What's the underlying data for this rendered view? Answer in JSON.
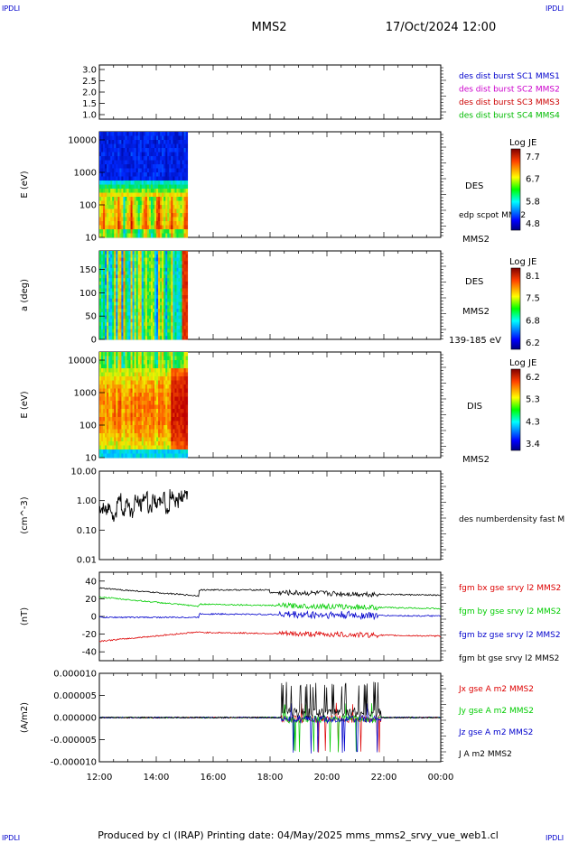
{
  "header": {
    "corner_tl": "IPDLI",
    "corner_tr": "IPDLI",
    "corner_bl": "IPDLI",
    "corner_br": "IPDLI",
    "mission": "MMS2",
    "datetime": "17/Oct/2024 12:00"
  },
  "footer": {
    "text": "Produced by cl (IRAP)   Printing date: 04/May/2025   mms_mms2_srvy_vue_web1.cl"
  },
  "colors": {
    "mms1": "#0000cc",
    "mms2": "#cc00cc",
    "mms3": "#cc0000",
    "mms4": "#00bb00",
    "bx": "#dd0000",
    "by": "#00cc00",
    "bz": "#0000cc",
    "bt": "#000000"
  },
  "time_axis": {
    "ticks": [
      "12:00",
      "14:00",
      "16:00",
      "18:00",
      "20:00",
      "22:00",
      "00:00"
    ],
    "start_hour": 12,
    "end_hour": 24
  },
  "chart_data": [
    {
      "type": "line",
      "panel": "burst",
      "yticks": [
        "3.0",
        "2.5",
        "2.0",
        "1.5",
        "1.0"
      ],
      "ylim": [
        0.8,
        3.2
      ],
      "legend": [
        {
          "label": "des dist burst SC1 MMS1",
          "color": "#0000cc"
        },
        {
          "label": "des dist burst SC2 MMS2",
          "color": "#cc00cc"
        },
        {
          "label": "des dist burst SC3 MMS3",
          "color": "#cc0000"
        },
        {
          "label": "des dist burst SC4 MMS4",
          "color": "#00bb00"
        }
      ]
    },
    {
      "type": "heatmap",
      "panel": "des_energy",
      "ylabel": "E (eV)",
      "yticks": [
        "10000",
        "1000",
        "100",
        "10"
      ],
      "data_end_hour": 15.1,
      "label": "DES",
      "sublabel": "edp scpot MMS2",
      "satellite": "MMS2",
      "colorbar": {
        "title": "Log JE",
        "ticks": [
          "7.7",
          "6.7",
          "5.8",
          "4.8"
        ]
      }
    },
    {
      "type": "heatmap",
      "panel": "des_pitch",
      "ylabel": "a (deg)",
      "yticks": [
        "150",
        "100",
        "50",
        "0"
      ],
      "data_end_hour": 15.1,
      "label": "DES",
      "satellite": "MMS2",
      "energy_range": "139-185 eV",
      "colorbar": {
        "title": "Log JE",
        "ticks": [
          "8.1",
          "7.5",
          "6.8",
          "6.2"
        ]
      }
    },
    {
      "type": "heatmap",
      "panel": "dis_energy",
      "ylabel": "E (eV)",
      "yticks": [
        "10000",
        "1000",
        "100",
        "10"
      ],
      "data_end_hour": 15.1,
      "label": "DIS",
      "satellite": "MMS2",
      "colorbar": {
        "title": "Log JE",
        "ticks": [
          "6.2",
          "5.3",
          "4.3",
          "3.4"
        ]
      }
    },
    {
      "type": "line",
      "panel": "density",
      "ylabel": "(cm^-3)",
      "yticks": [
        "10.00",
        "1.00",
        "0.10",
        "0.01"
      ],
      "scale": "log",
      "ylim": [
        0.01,
        10
      ],
      "legend": [
        {
          "label": "des numberdensity fast M",
          "color": "#000000"
        }
      ],
      "series": [
        {
          "values_hour_start": 12.0,
          "values_hour_end": 15.1,
          "typical": [
            0.5,
            0.45,
            0.6,
            0.3,
            1.2,
            0.5,
            0.8,
            0.4,
            1.0,
            0.7,
            1.4,
            0.6,
            1.0,
            0.8,
            1.2,
            0.5,
            1.6,
            0.9,
            1.3,
            1.8
          ]
        }
      ]
    },
    {
      "type": "line",
      "panel": "fgm",
      "ylabel": "(nT)",
      "yticks": [
        "40",
        "20",
        "0",
        "-20",
        "-40"
      ],
      "ylim": [
        -50,
        50
      ],
      "legend": [
        {
          "label": "fgm bx gse srvy l2 MMS2",
          "color": "#dd0000"
        },
        {
          "label": "fgm by gse srvy l2 MMS2",
          "color": "#00cc00"
        },
        {
          "label": "fgm bz gse srvy l2 MMS2",
          "color": "#0000cc"
        },
        {
          "label": "fgm bt gse srvy l2 MMS2",
          "color": "#000000"
        }
      ]
    },
    {
      "type": "line",
      "panel": "current",
      "ylabel": "(A/m2)",
      "yticks": [
        "0.000010",
        "0.000005",
        "0.000000",
        "-0.000005",
        "-0.000010"
      ],
      "ylim": [
        -1e-05,
        1e-05
      ],
      "legend": [
        {
          "label": "Jx gse A m2 MMS2",
          "color": "#dd0000"
        },
        {
          "label": "Jy gse A m2 MMS2",
          "color": "#00cc00"
        },
        {
          "label": "Jz gse A m2 MMS2",
          "color": "#0000cc"
        },
        {
          "label": "J A m2 MMS2",
          "color": "#000000"
        }
      ]
    }
  ]
}
